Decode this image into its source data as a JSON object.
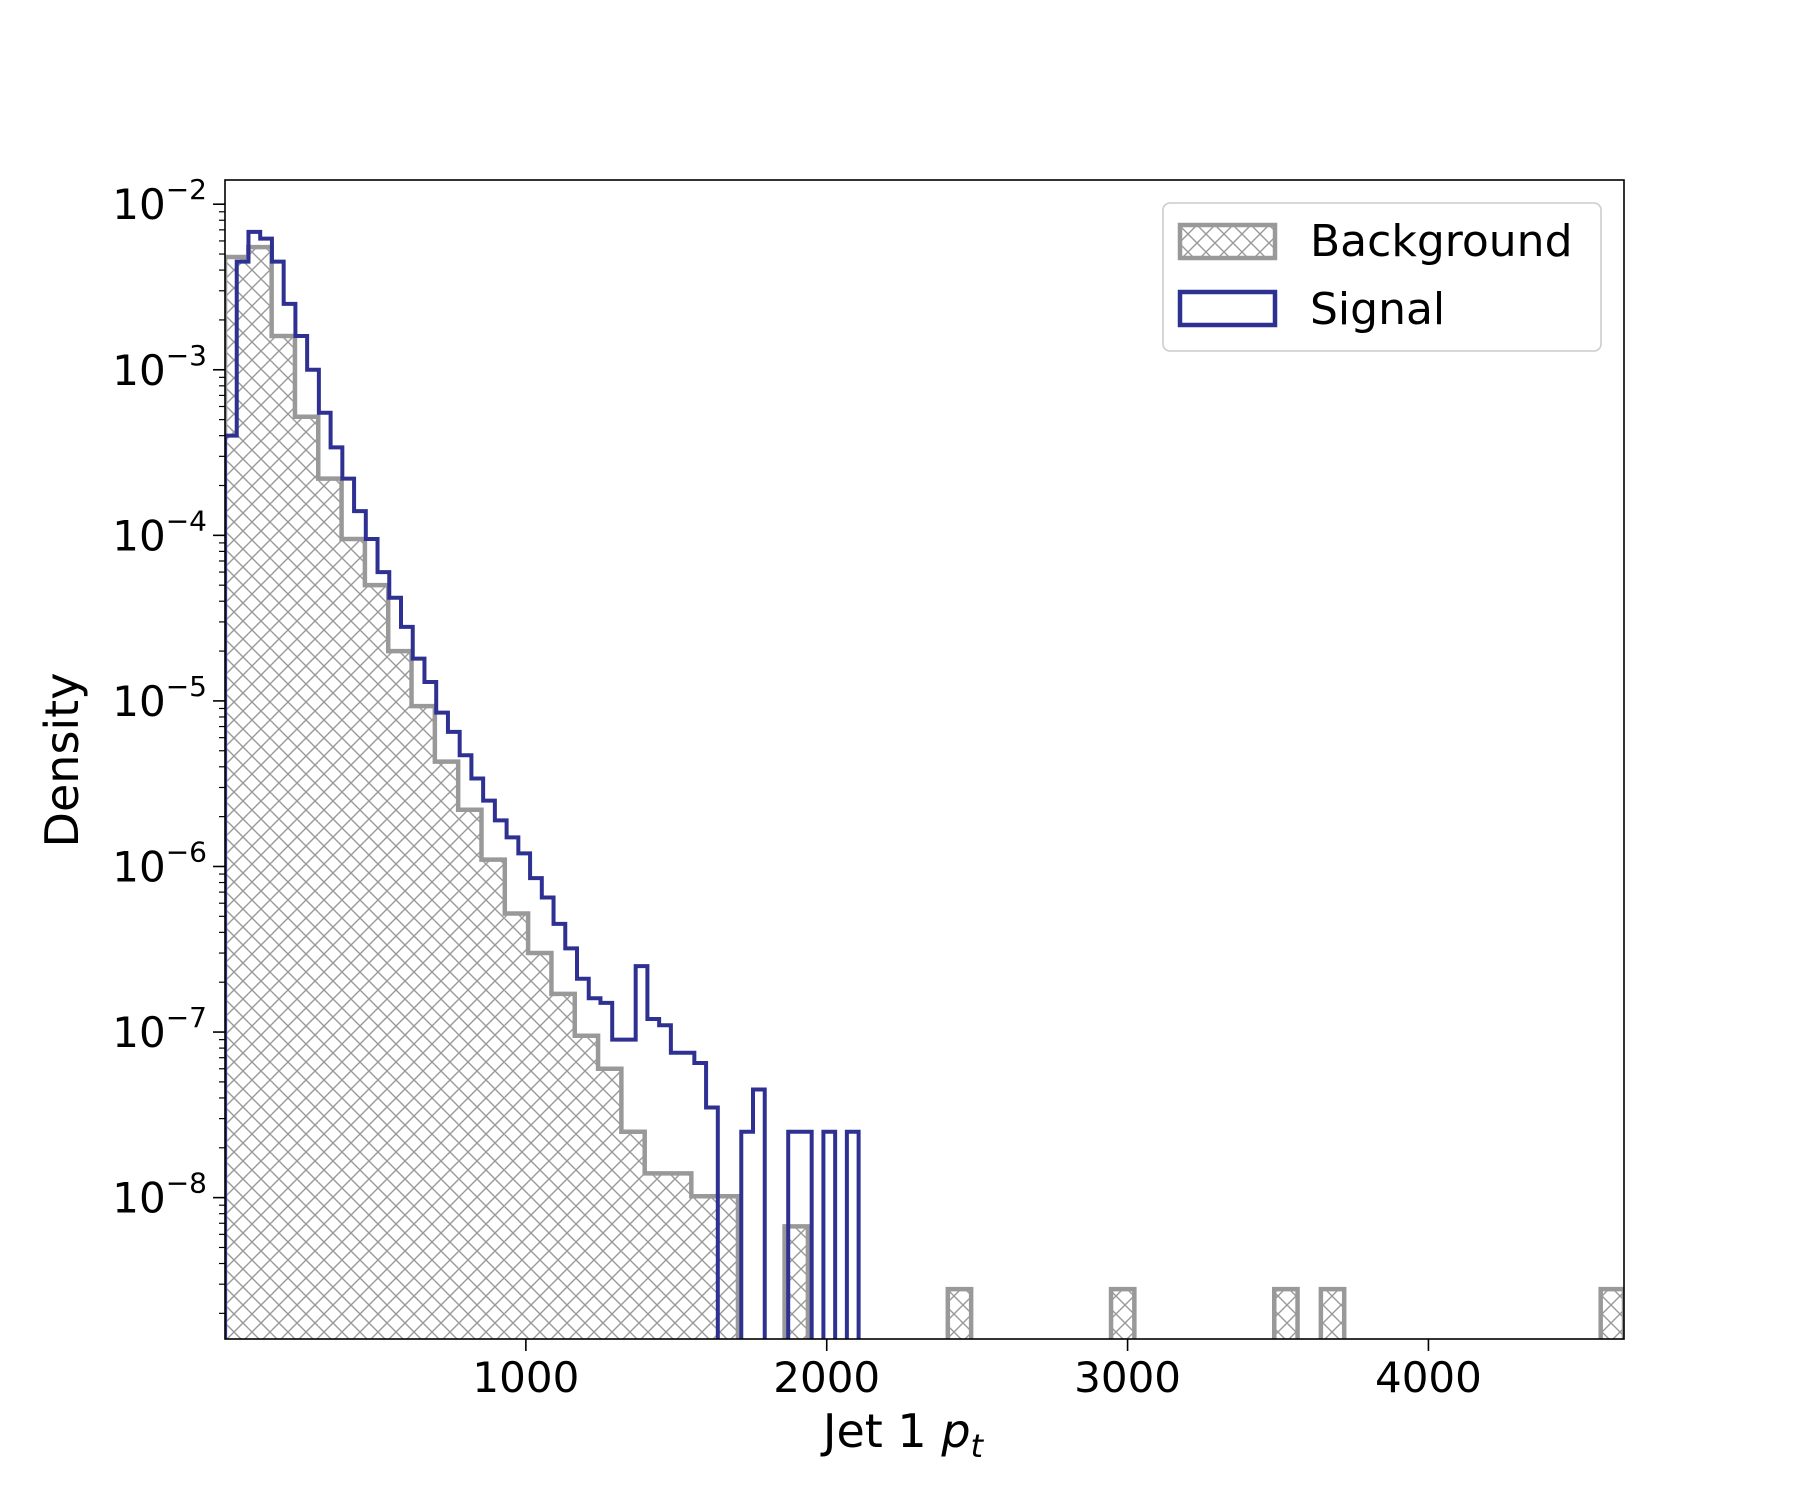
{
  "chart_data": {
    "type": "histogram",
    "xlabel_main": "Jet 1",
    "xlabel_sub": "t",
    "ylabel": "Density",
    "xlim": [
      0,
      4650
    ],
    "ylim": [
      1.4e-09,
      0.014
    ],
    "yscale": "log",
    "x_ticks": [
      1000,
      2000,
      3000,
      4000
    ],
    "x_tick_labels": [
      "1000",
      "2000",
      "3000",
      "4000"
    ],
    "y_ticks": [
      {
        "value": 0.01,
        "base": "10",
        "exp": "−2"
      },
      {
        "value": 0.001,
        "base": "10",
        "exp": "−3"
      },
      {
        "value": 0.0001,
        "base": "10",
        "exp": "−4"
      },
      {
        "value": 1e-05,
        "base": "10",
        "exp": "−5"
      },
      {
        "value": 1e-06,
        "base": "10",
        "exp": "−6"
      },
      {
        "value": 1e-07,
        "base": "10",
        "exp": "−7"
      },
      {
        "value": 1e-08,
        "base": "10",
        "exp": "−8"
      }
    ],
    "legend_position": "top-right",
    "series": [
      {
        "name": "Background",
        "color": "#999999",
        "style": "hatched",
        "bin_width": 77.5,
        "bin_start": 0,
        "values": [
          0.0048,
          0.0055,
          0.0016,
          0.00052,
          0.00022,
          9.5e-05,
          5e-05,
          2e-05,
          9.3e-06,
          4.3e-06,
          2.2e-06,
          1.1e-06,
          5.2e-07,
          3e-07,
          1.7e-07,
          9.5e-08,
          6e-08,
          2.5e-08,
          1.4e-08,
          1.4e-08,
          1.02e-08,
          1.02e-08,
          0,
          0,
          6.7e-09,
          0,
          0,
          0,
          0,
          0,
          0,
          2.8e-09,
          0,
          0,
          0,
          0,
          0,
          0,
          2.8e-09,
          0,
          0,
          0,
          0,
          0,
          0,
          2.8e-09,
          0,
          2.8e-09,
          0,
          0,
          0,
          0,
          0,
          0,
          0,
          0,
          0,
          0,
          0,
          2.8e-09
        ]
      },
      {
        "name": "Signal",
        "color": "#2e3192",
        "style": "step",
        "bin_width": 39,
        "bin_start": 0,
        "values": [
          0.0004,
          0.0045,
          0.0068,
          0.0062,
          0.0045,
          0.0025,
          0.0016,
          0.001,
          0.00055,
          0.00034,
          0.00022,
          0.00014,
          9.5e-05,
          6e-05,
          4.2e-05,
          2.8e-05,
          1.8e-05,
          1.3e-05,
          8.5e-06,
          6.5e-06,
          4.7e-06,
          3.4e-06,
          2.5e-06,
          1.9e-06,
          1.5e-06,
          1.2e-06,
          8.5e-07,
          6.5e-07,
          4.5e-07,
          3.2e-07,
          2.1e-07,
          1.6e-07,
          1.5e-07,
          9e-08,
          9e-08,
          2.5e-07,
          1.2e-07,
          1.1e-07,
          7.5e-08,
          7.5e-08,
          6.5e-08,
          3.5e-08,
          0,
          0,
          2.5e-08,
          4.5e-08,
          0,
          0,
          2.5e-08,
          2.5e-08,
          0,
          2.5e-08,
          0,
          2.5e-08
        ]
      }
    ]
  }
}
